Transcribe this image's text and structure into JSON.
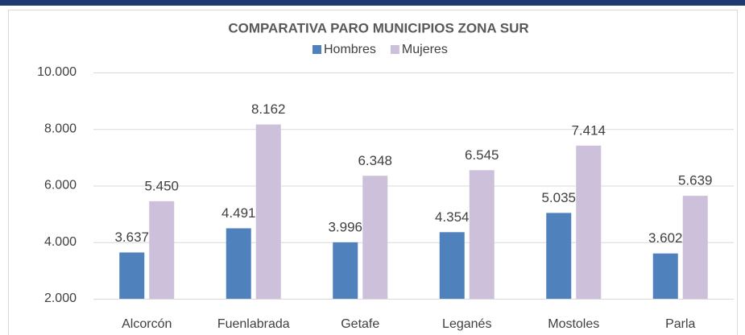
{
  "chart_data": {
    "type": "bar",
    "title": "COMPARATIVA PARO MUNICIPIOS ZONA SUR",
    "categories": [
      "Alcorcón",
      "Fuenlabrada",
      "Getafe",
      "Leganés",
      "Mostoles",
      "Parla"
    ],
    "series": [
      {
        "name": "Hombres",
        "color": "#4f81bd",
        "values": [
          3637,
          4491,
          3996,
          4354,
          5035,
          3602
        ],
        "value_labels": [
          "3.637",
          "4.491",
          "3.996",
          "4.354",
          "5.035",
          "3.602"
        ]
      },
      {
        "name": "Mujeres",
        "color": "#ccc0da",
        "values": [
          5450,
          8162,
          6348,
          6545,
          7414,
          5639
        ],
        "value_labels": [
          "5.450",
          "8.162",
          "6.348",
          "6.545",
          "7.414",
          "5.639"
        ]
      }
    ],
    "ylim": [
      2000,
      10000
    ],
    "yticks": [
      {
        "value": 2000,
        "label": "2.000"
      },
      {
        "value": 4000,
        "label": "4.000"
      },
      {
        "value": 6000,
        "label": "6.000"
      },
      {
        "value": 8000,
        "label": "8.000"
      },
      {
        "value": 10000,
        "label": "10.000"
      }
    ],
    "grid": true,
    "legend": "top"
  }
}
